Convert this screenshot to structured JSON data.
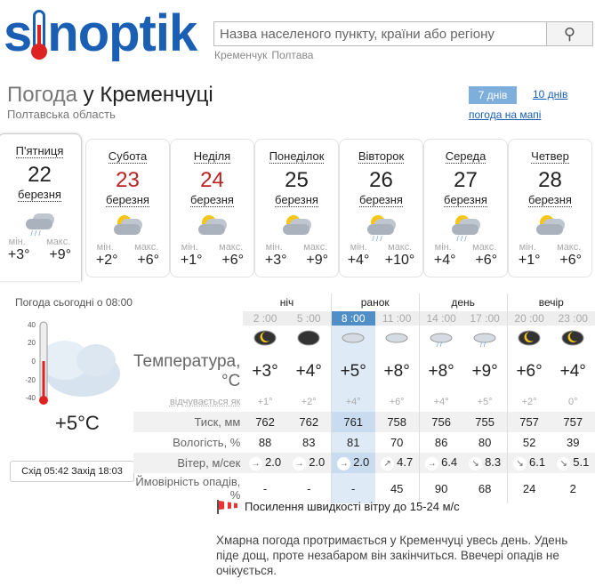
{
  "logo": {
    "pre": "s",
    "post": "noptik"
  },
  "search": {
    "placeholder": "Назва населеного пункту, країни або регіону",
    "button_icon": "search-icon"
  },
  "recent": [
    "Кременчук",
    "Полтава"
  ],
  "title": {
    "prefix": "Погода",
    "city": "у Кременчуці"
  },
  "region": "Полтавська область",
  "tabs": {
    "seven": "7 днів",
    "ten": "10 днів",
    "map": "погода на мапі"
  },
  "days": [
    {
      "name": "П'ятниця",
      "num": "22",
      "month": "березня",
      "min_label": "мін.",
      "max_label": "макс.",
      "min": "+3°",
      "max": "+9°",
      "icon": "rain-cloud-icon",
      "weekend": false
    },
    {
      "name": "Субота",
      "num": "23",
      "month": "березня",
      "min_label": "мін.",
      "max_label": "макс.",
      "min": "+2°",
      "max": "+6°",
      "icon": "sun-cloud-icon",
      "weekend": true
    },
    {
      "name": "Неділя",
      "num": "24",
      "month": "березня",
      "min_label": "мін.",
      "max_label": "макс.",
      "min": "+1°",
      "max": "+6°",
      "icon": "sun-cloud-icon",
      "weekend": true
    },
    {
      "name": "Понеділок",
      "num": "25",
      "month": "березня",
      "min_label": "мін.",
      "max_label": "макс.",
      "min": "+3°",
      "max": "+9°",
      "icon": "sun-cloud-icon",
      "weekend": false
    },
    {
      "name": "Вівторок",
      "num": "26",
      "month": "березня",
      "min_label": "мін.",
      "max_label": "макс.",
      "min": "+4°",
      "max": "+10°",
      "icon": "sun-rain-icon",
      "weekend": false
    },
    {
      "name": "Середа",
      "num": "27",
      "month": "березня",
      "min_label": "мін.",
      "max_label": "макс.",
      "min": "+4°",
      "max": "+6°",
      "icon": "sun-rain-icon",
      "weekend": false
    },
    {
      "name": "Четвер",
      "num": "28",
      "month": "березня",
      "min_label": "мін.",
      "max_label": "макс.",
      "min": "+1°",
      "max": "+6°",
      "icon": "sun-cloud-icon",
      "weekend": false
    }
  ],
  "today": {
    "label": "Погода сьогодні о 08:00",
    "temp": "+5°C",
    "scale": [
      "40",
      "20",
      "0",
      "-20",
      "-40"
    ],
    "sunrise_label": "Схід",
    "sunrise": "05:42",
    "sunset_label": "Захід",
    "sunset": "18:03"
  },
  "details": {
    "periods": [
      "ніч",
      "ранок",
      "день",
      "вечір"
    ],
    "times": [
      "2 :00",
      "5 :00",
      "8 :00",
      "11 :00",
      "14 :00",
      "17 :00",
      "20 :00",
      "23 :00"
    ],
    "labels": {
      "temp": "Температура, °C",
      "feel": "відчувається як",
      "press": "Тиск, мм",
      "hum": "Вологість, %",
      "wind": "Вітер, м/сек",
      "prec": "Ймовірність опадів, %"
    },
    "temp": [
      "+3°",
      "+4°",
      "+5°",
      "+8°",
      "+8°",
      "+9°",
      "+6°",
      "+4°"
    ],
    "feel": [
      "+1°",
      "+2°",
      "+4°",
      "+6°",
      "+4°",
      "+5°",
      "+2°",
      "0°"
    ],
    "press": [
      "762",
      "762",
      "761",
      "758",
      "756",
      "755",
      "757",
      "757"
    ],
    "hum": [
      "88",
      "83",
      "81",
      "70",
      "86",
      "80",
      "52",
      "39"
    ],
    "wind_dir": [
      "→",
      "→",
      "→",
      "↗",
      "→",
      "↘",
      "↘",
      "↘"
    ],
    "wind": [
      "2.0",
      "2.0",
      "2.0",
      "4.7",
      "6.4",
      "8.3",
      "6.1",
      "5.1"
    ],
    "prec": [
      "-",
      "-",
      "-",
      "45",
      "90",
      "68",
      "24",
      "2"
    ]
  },
  "warning": "Посилення швидкості вітру до 15-24 м/с",
  "description": "Хмарна погода протримається у Кременчуці увесь день. Удень піде дощ, проте незабаром він закінчиться. Ввечері опадів не очікується."
}
